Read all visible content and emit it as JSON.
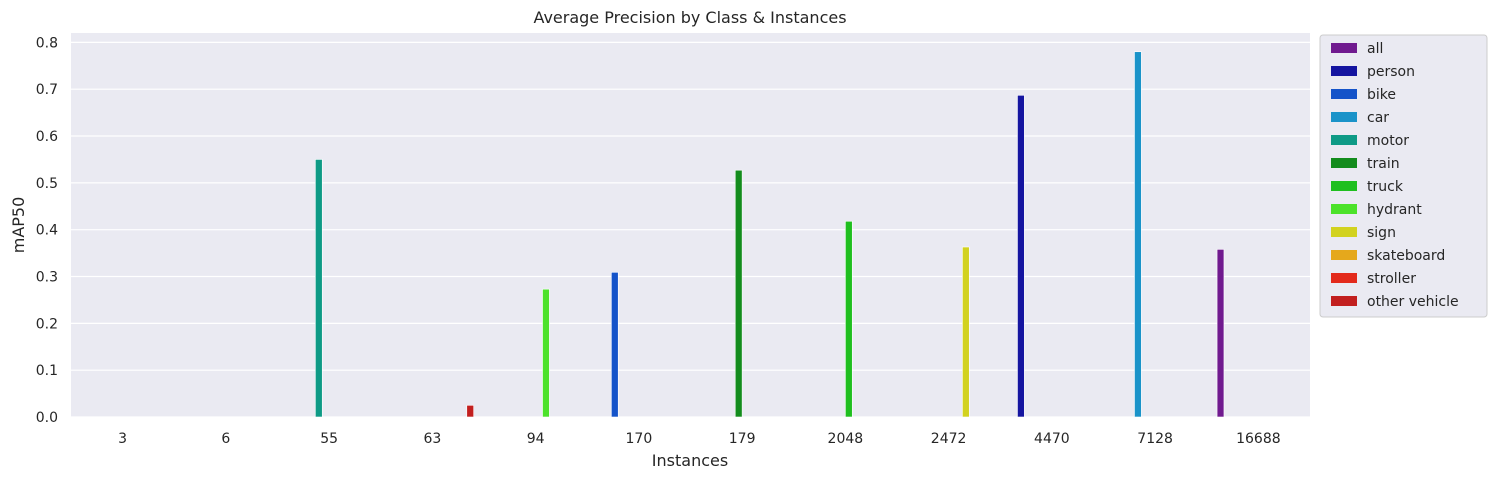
{
  "chart_data": {
    "type": "bar",
    "title": "Average Precision by Class & Instances",
    "xlabel": "Instances",
    "ylabel": "mAP50",
    "ylim": [
      0,
      0.82
    ],
    "yticks": [
      "0.0",
      "0.1",
      "0.2",
      "0.3",
      "0.4",
      "0.5",
      "0.6",
      "0.7",
      "0.8"
    ],
    "grid": true,
    "legend_position": "outside-right",
    "categories": [
      "3",
      "6",
      "55",
      "63",
      "94",
      "170",
      "179",
      "2048",
      "2472",
      "4470",
      "7128",
      "16688"
    ],
    "series": [
      {
        "name": "all",
        "color": "#701a8f",
        "category": "16688",
        "value": 0.358
      },
      {
        "name": "person",
        "color": "#1515a0",
        "category": "4470",
        "value": 0.687
      },
      {
        "name": "bike",
        "color": "#1453c9",
        "category": "170",
        "value": 0.309
      },
      {
        "name": "car",
        "color": "#1a93c9",
        "category": "7128",
        "value": 0.78
      },
      {
        "name": "motor",
        "color": "#0e9a86",
        "category": "55",
        "value": 0.55
      },
      {
        "name": "train",
        "color": "#138c1d",
        "category": "179",
        "value": 0.527
      },
      {
        "name": "truck",
        "color": "#1fbf1f",
        "category": "2048",
        "value": 0.418
      },
      {
        "name": "hydrant",
        "color": "#4ce22a",
        "category": "94",
        "value": 0.273
      },
      {
        "name": "sign",
        "color": "#d2d21f",
        "category": "2472",
        "value": 0.363
      },
      {
        "name": "skateboard",
        "color": "#e5a81c",
        "category": "3",
        "value": 0.0
      },
      {
        "name": "stroller",
        "color": "#e32a1c",
        "category": "6",
        "value": 0.0
      },
      {
        "name": "other vehicle",
        "color": "#c21f1f",
        "category": "63",
        "value": 0.025
      }
    ]
  }
}
